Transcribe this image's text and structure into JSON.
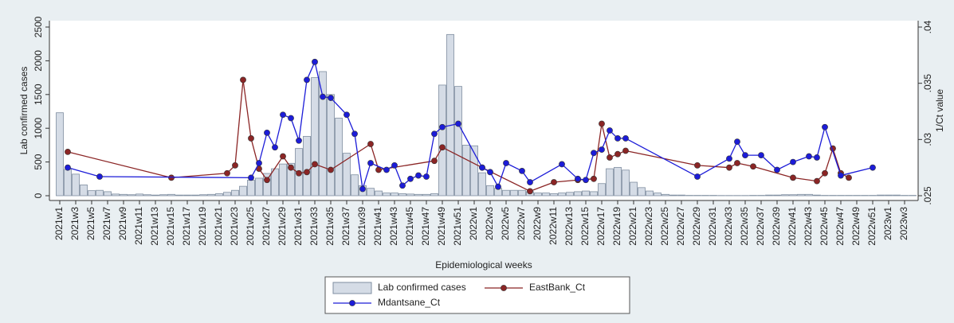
{
  "chart_data": {
    "type": "bar",
    "x_label": "Epidemiological weeks",
    "y_label": "Lab confirmed cases",
    "y2_label": "1/Ct value",
    "categories": [
      "2021w1",
      null,
      "2021w3",
      null,
      "2021w5",
      null,
      "2021w7",
      null,
      "2021w9",
      null,
      "2021w11",
      null,
      "2021w13",
      null,
      "2021w15",
      null,
      "2021w17",
      null,
      "2021w19",
      null,
      "2021w21",
      null,
      "2021w23",
      null,
      "2021w25",
      null,
      "2021w27",
      null,
      "2021w29",
      null,
      "2021w31",
      null,
      "2021w33",
      null,
      "2021w35",
      null,
      "2021w37",
      null,
      "2021w39",
      null,
      "2021w41",
      null,
      "2021w43",
      null,
      "2021w45",
      null,
      "2021w47",
      null,
      "2021w49",
      null,
      "2021w51",
      null,
      "2022w1",
      null,
      "2022w3",
      null,
      "2022w5",
      null,
      "2022w7",
      null,
      "2022w9",
      null,
      "2022w11",
      null,
      "2022w13",
      null,
      "2022w15",
      null,
      "2022w17",
      null,
      "2022w19",
      null,
      "2022w21",
      null,
      "2022w23",
      null,
      "2022w25",
      null,
      "2022w27",
      null,
      "2022w29",
      null,
      "2022w31",
      null,
      "2022w33",
      null,
      "2022w35",
      null,
      "2022w37",
      null,
      "2022w39",
      null,
      "2022w41",
      null,
      "2022w43",
      null,
      "2022w45",
      null,
      "2022w47",
      null,
      "2022w49",
      null,
      "2022w51",
      null,
      "2023w1",
      null,
      "2023w3",
      null
    ],
    "ylim": [
      0,
      2500
    ],
    "yticks": [
      0,
      500,
      1000,
      1500,
      2000,
      2500
    ],
    "y2lim": [
      0.025,
      0.04
    ],
    "y2ticks": [
      {
        "value": 0.025,
        "label": ".025"
      },
      {
        "value": 0.03,
        "label": ".03"
      },
      {
        "value": 0.035,
        "label": ".035"
      },
      {
        "value": 0.04,
        "label": ".04"
      }
    ],
    "legend": "bottom",
    "series": [
      {
        "name": "Lab confirmed cases",
        "type": "bar",
        "color": "#d5dce6",
        "values": [
          1230,
          390,
          320,
          160,
          75,
          80,
          60,
          25,
          20,
          15,
          25,
          15,
          10,
          15,
          20,
          10,
          10,
          10,
          15,
          20,
          30,
          50,
          80,
          140,
          230,
          260,
          330,
          400,
          470,
          480,
          700,
          880,
          1750,
          1840,
          1500,
          1150,
          630,
          310,
          150,
          110,
          70,
          40,
          40,
          30,
          25,
          20,
          20,
          30,
          1640,
          2390,
          1620,
          750,
          740,
          340,
          150,
          110,
          80,
          80,
          80,
          60,
          40,
          40,
          30,
          40,
          50,
          60,
          70,
          60,
          180,
          400,
          420,
          380,
          200,
          120,
          70,
          40,
          20,
          10,
          10,
          5,
          5,
          5,
          5,
          3,
          3,
          3,
          3,
          5,
          5,
          10,
          10,
          15,
          15,
          20,
          20,
          10,
          5,
          5,
          5,
          5,
          5,
          5,
          5,
          10,
          10,
          10,
          5,
          5
        ]
      },
      {
        "name": "EastBank_Ct",
        "type": "line",
        "axis": "y2",
        "color": "#8b2525",
        "values": [
          null,
          0.0289,
          null,
          null,
          null,
          null,
          null,
          null,
          null,
          null,
          null,
          null,
          null,
          null,
          0.0266,
          null,
          null,
          null,
          null,
          null,
          null,
          0.027,
          0.0277,
          0.0353,
          0.0301,
          0.0274,
          0.0264,
          null,
          0.0285,
          0.0275,
          0.027,
          0.0271,
          0.0278,
          null,
          0.0273,
          null,
          null,
          null,
          null,
          0.0296,
          0.0273,
          null,
          null,
          null,
          null,
          null,
          null,
          0.0281,
          0.0293,
          null,
          null,
          null,
          null,
          0.0275,
          null,
          null,
          null,
          null,
          null,
          0.0254,
          null,
          null,
          0.0262,
          null,
          null,
          0.0264,
          null,
          0.0265,
          0.0314,
          0.0284,
          0.0287,
          0.029,
          null,
          null,
          null,
          null,
          null,
          null,
          null,
          null,
          0.0277,
          null,
          null,
          null,
          0.0275,
          0.0279,
          null,
          0.0276,
          null,
          null,
          null,
          null,
          0.0266,
          null,
          null,
          0.0263,
          0.027,
          0.0292,
          0.027,
          0.0266,
          null,
          null,
          null,
          null,
          null,
          null,
          null,
          null
        ]
      },
      {
        "name": "Mdantsane_Ct",
        "type": "line",
        "axis": "y2",
        "color": "#1c1cd8",
        "values": [
          null,
          0.0275,
          null,
          null,
          null,
          0.0267,
          null,
          null,
          null,
          null,
          null,
          null,
          null,
          null,
          null,
          null,
          null,
          null,
          null,
          null,
          null,
          null,
          null,
          null,
          0.0266,
          0.0279,
          0.0306,
          0.0293,
          0.0322,
          0.0319,
          0.0299,
          0.0353,
          0.0369,
          0.0338,
          0.0337,
          null,
          0.0322,
          0.0305,
          0.0256,
          0.0279,
          null,
          0.0273,
          0.0277,
          0.0259,
          0.0265,
          0.0268,
          0.0267,
          0.0305,
          0.0311,
          null,
          0.0314,
          null,
          null,
          0.0275,
          0.0271,
          0.0258,
          0.0279,
          null,
          0.0272,
          0.0262,
          null,
          null,
          null,
          0.0278,
          null,
          0.0265,
          0.0264,
          0.0288,
          0.0291,
          0.0308,
          0.0301,
          0.0301,
          null,
          null,
          null,
          null,
          null,
          null,
          null,
          null,
          0.0267,
          null,
          null,
          null,
          0.0283,
          0.0298,
          0.0286,
          null,
          0.0286,
          null,
          0.0273,
          null,
          0.028,
          null,
          0.0285,
          0.0284,
          0.0311,
          null,
          0.0268,
          null,
          null,
          null,
          0.0275,
          null,
          null,
          null,
          null,
          null
        ]
      }
    ]
  }
}
